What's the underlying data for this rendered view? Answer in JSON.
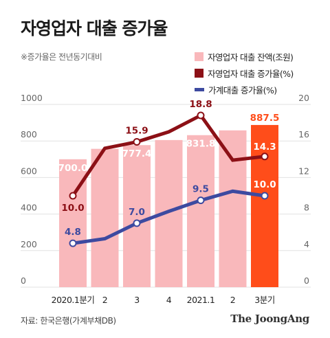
{
  "title": "자영업자 대출 증가율",
  "note": "※증가율은 전년동기대비",
  "legend": {
    "balance": "자영업자 대출 잔액(조원)",
    "self_rate": "자영업자 대출 증가율(%)",
    "household_rate": "가계대출 증가율(%)"
  },
  "source": "자료: 한국은행(가계부채DB)",
  "brand": "The JoongAng",
  "colors": {
    "bar": "#f9b8bb",
    "bar_highlight": "#ff4d1a",
    "self_line": "#8c1016",
    "household_line": "#3d4aa0"
  },
  "chart_data": {
    "type": "bar",
    "categories": [
      "2020.1분기",
      "2",
      "3",
      "4",
      "2021.1",
      "2",
      "3분기"
    ],
    "y_left": {
      "ylim": [
        0,
        1000
      ],
      "ticks": [
        "0",
        "200",
        "400",
        "600",
        "800",
        "1000"
      ]
    },
    "y_right": {
      "ylim": [
        0,
        20
      ],
      "ticks": [
        "0",
        "4",
        "8",
        "12",
        "16",
        "20"
      ]
    },
    "series": [
      {
        "name": "자영업자 대출 잔액(조원)",
        "type": "bar",
        "axis": "left",
        "values": [
          700.0,
          757,
          777.4,
          805,
          831.8,
          858,
          887.5
        ],
        "labels": [
          "700.0",
          "",
          "777.4",
          "",
          "831.8",
          "",
          "887.5"
        ]
      },
      {
        "name": "자영업자 대출 증가율(%)",
        "type": "line",
        "axis": "right",
        "values": [
          10.0,
          15.2,
          15.9,
          17.0,
          18.8,
          13.9,
          14.3
        ],
        "labels": [
          "10.0",
          "",
          "15.9",
          "",
          "18.8",
          "",
          "14.3"
        ]
      },
      {
        "name": "가계대출 증가율(%)",
        "type": "line",
        "axis": "right",
        "values": [
          4.8,
          5.3,
          7.0,
          8.3,
          9.5,
          10.5,
          10.0
        ],
        "labels": [
          "4.8",
          "",
          "7.0",
          "",
          "9.5",
          "",
          "10.0"
        ]
      }
    ]
  }
}
